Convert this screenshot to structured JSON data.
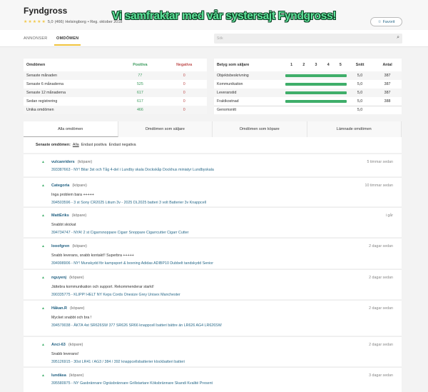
{
  "header": {
    "title": "Fyndgross",
    "stars": "★★★★★",
    "rating": "5,0",
    "count": "(466)",
    "location": "Helsingborg",
    "registered": "• Reg. oktober 2018",
    "banner": "Vi samfraktar med vår systersajt Fyndgross!",
    "favorite_label": "Favorit",
    "favorite_icon": "star-outline-icon"
  },
  "nav": {
    "tabs": [
      "ANNONSER",
      "OMDÖMEN"
    ],
    "active": "OMDÖMEN",
    "search_placeholder": "Sök"
  },
  "summary": {
    "headers": [
      "Omdömen",
      "Positiva",
      "Negativa"
    ],
    "rows": [
      [
        "Senaste månaden",
        "77",
        "0"
      ],
      [
        "Senaste 6 månaderna",
        "525",
        "0"
      ],
      [
        "Senaste 12 månaderna",
        "617",
        "0"
      ],
      [
        "Sedan registrering",
        "617",
        "0"
      ],
      [
        "Unika omdömen",
        "466",
        "0"
      ]
    ]
  },
  "seller_rating": {
    "headers": [
      "Betyg som säljare",
      "1",
      "2",
      "3",
      "4",
      "5",
      "Snitt",
      "Antal"
    ],
    "rows": [
      {
        "label": "Objektsbeskrivning",
        "score": 5.0,
        "avg": "5,0",
        "count": "387"
      },
      {
        "label": "Kommunikation",
        "score": 5.0,
        "avg": "5,0",
        "count": "387"
      },
      {
        "label": "Leveranstid",
        "score": 5.0,
        "avg": "5,0",
        "count": "387"
      },
      {
        "label": "Fraktkostnad",
        "score": 5.0,
        "avg": "5,0",
        "count": "388"
      }
    ],
    "total_label": "Genomsnitt",
    "total_avg": "5,0",
    "bar_color": "#3fae6a"
  },
  "review_tabs": [
    "Alla omdömen",
    "Omdömen som säljare",
    "Omdömen som köpare",
    "Lämnade omdömen"
  ],
  "filter": {
    "label": "Senaste omdömen:",
    "options": [
      "Alla",
      "Endast positiva",
      "Endast negativa"
    ],
    "active": "Alla"
  },
  "reviews": [
    {
      "user": "vulcanriders",
      "role": "(köpare)",
      "time": "5 timmar sedan",
      "comment": "",
      "item": "393387663 - NY! Bilar 3st och Tåg 4-del i Lundby skala Dockskåp Dockhus miniatyr Lundbyskala"
    },
    {
      "user": "Categoria",
      "role": "(köpare)",
      "time": "10 timmar sedan",
      "comment": "Inga problem bara +++++",
      "item": "394503596 - 3 st Sony CR2025 Litium 3v - 2025 DL2025 batteri 3 volt Batterier 3v Knappcell"
    },
    {
      "user": "MattEriks",
      "role": "(köpare)",
      "time": "i går",
      "comment": "Snabbt skickat",
      "item": "394734747 - NYA! 2 st Cigarrsnoppare Cigarr Snoppare Cigarrcutter Cigarr Cutter"
    },
    {
      "user": "looofgren",
      "role": "(köpare)",
      "time": "2 dagar sedan",
      "comment": "Snabb leverans, snabb kontakt!! Superbra +++++",
      "item": "394998906 - NY! Munskydd för kampsport & boxning Adidas ADIBP10 Dubbelt tandskydd Senior"
    },
    {
      "user": "nguyenj",
      "role": "(köpare)",
      "time": "2 dagar sedan",
      "comment": "Jättebra kommunikation och support. Rekommenderar starkt!",
      "item": "390335775 - KLIPP! HELT NY Keps Cords Onesize Grey Unisex Manchester"
    },
    {
      "user": "Håkan.R",
      "role": "(köpare)",
      "time": "2 dagar sedan",
      "comment": "Mycket snabbt och bra !",
      "item": "394579038 - ÄKTA 4st SR626SW 377 SR626 SR66 knappcell batteri bättre än LR626 AG4 LR626SW"
    },
    {
      "user": "Anci-63",
      "role": "(köpare)",
      "time": "2 dagar sedan",
      "comment": "Snabb leverans!",
      "item": "395126915 - 30st LR41 / AG3 / 384 / 392 knappcellsbatterier klockbatteri batteri"
    },
    {
      "user": "lundäsa",
      "role": "(köpare)",
      "time": "3 dagar sedan",
      "comment": "",
      "item": "395580975 - NY Gasbrännare Ogräsbrännare Grillstartare Köksbrännare Skandi Kvalité Present"
    }
  ]
}
